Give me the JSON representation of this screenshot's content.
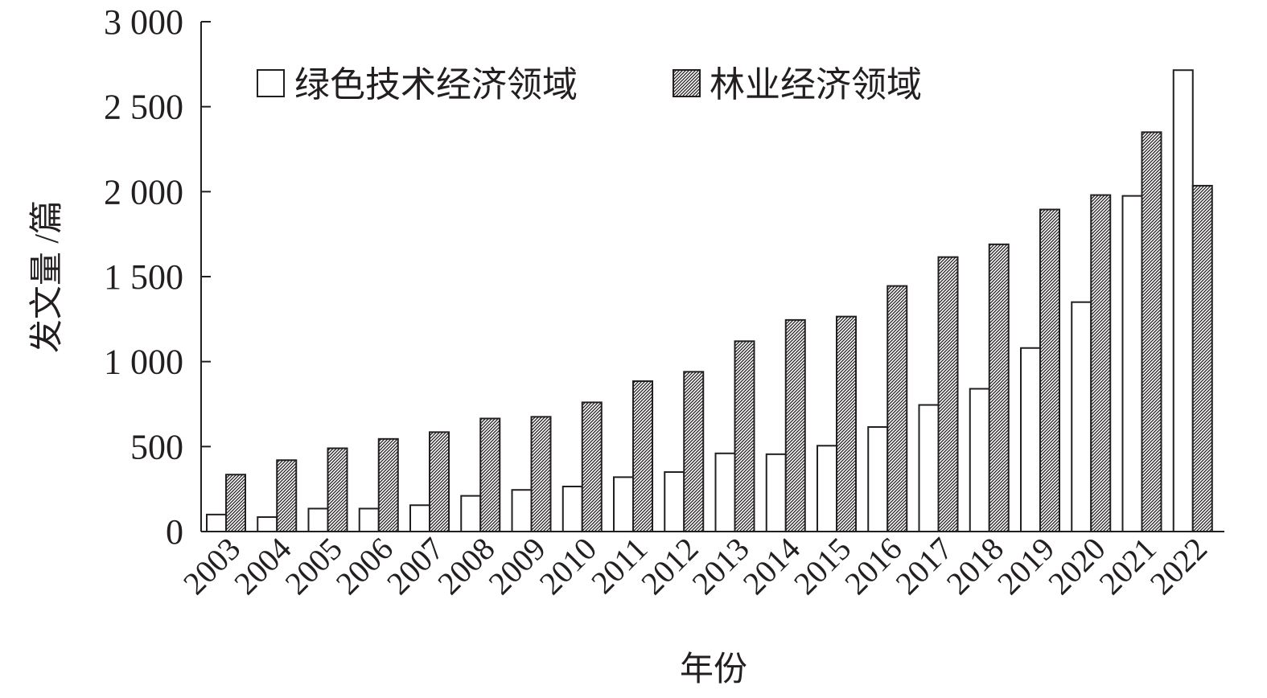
{
  "chart_data": {
    "type": "bar",
    "title": "",
    "xlabel": "年份",
    "ylabel": "发文量 /篇",
    "ylim": [
      0,
      3000
    ],
    "yticks": [
      0,
      500,
      1000,
      1500,
      2000,
      2500,
      3000
    ],
    "ytick_labels": [
      "0",
      "500",
      "1 000",
      "1 500",
      "2 000",
      "2 500",
      "3 000"
    ],
    "grid": false,
    "legend_position": "top-left",
    "categories": [
      "2003",
      "2004",
      "2005",
      "2006",
      "2007",
      "2008",
      "2009",
      "2010",
      "2011",
      "2012",
      "2013",
      "2014",
      "2015",
      "2016",
      "2017",
      "2018",
      "2019",
      "2020",
      "2021",
      "2022"
    ],
    "series": [
      {
        "name": "绿色技术经济领域",
        "fill": "white",
        "values": [
          100,
          85,
          135,
          135,
          155,
          210,
          245,
          265,
          320,
          350,
          460,
          455,
          505,
          615,
          745,
          840,
          1080,
          1350,
          1975,
          2715
        ]
      },
      {
        "name": "林业经济领域",
        "fill": "hatched",
        "values": [
          335,
          420,
          490,
          545,
          585,
          665,
          675,
          760,
          885,
          940,
          1120,
          1245,
          1265,
          1445,
          1615,
          1690,
          1895,
          1980,
          2350,
          2035
        ]
      }
    ]
  },
  "colors": {
    "ink": "#231f20",
    "background": "#ffffff",
    "hatch": "#231f20"
  }
}
